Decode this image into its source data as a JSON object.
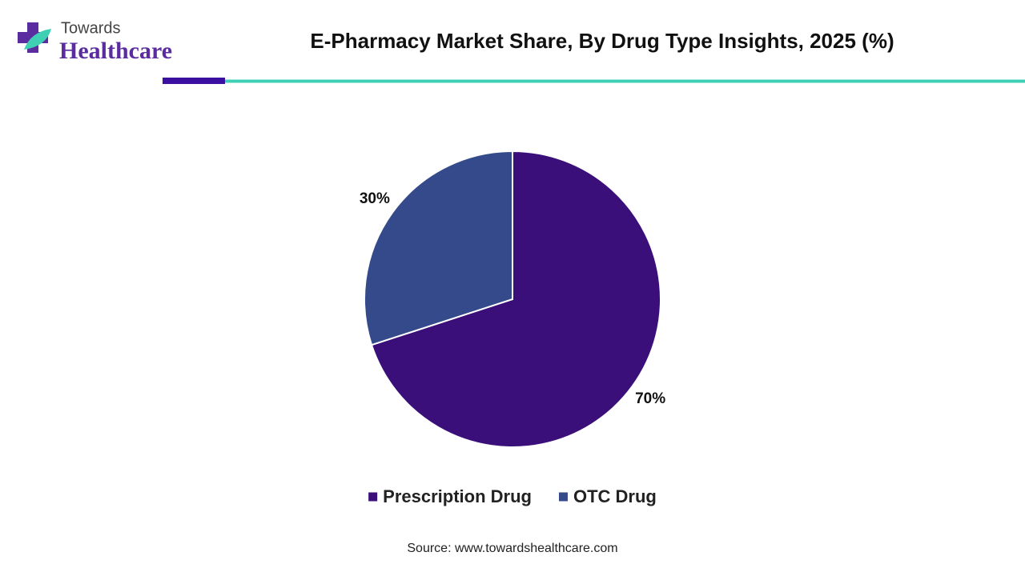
{
  "logo": {
    "line1": "Towards",
    "line2": "Healthcare"
  },
  "chart_data": {
    "type": "pie",
    "title": "E-Pharmacy Market Share, By Drug Type Insights, 2025 (%)",
    "categories": [
      "Prescription Drug",
      "OTC Drug"
    ],
    "values": [
      70,
      30
    ],
    "value_labels": [
      "70%",
      "30%"
    ],
    "colors": [
      "#3b0f7a",
      "#344a8a"
    ],
    "legend": "bottom",
    "source": "Source: www.towardshealthcare.com"
  }
}
